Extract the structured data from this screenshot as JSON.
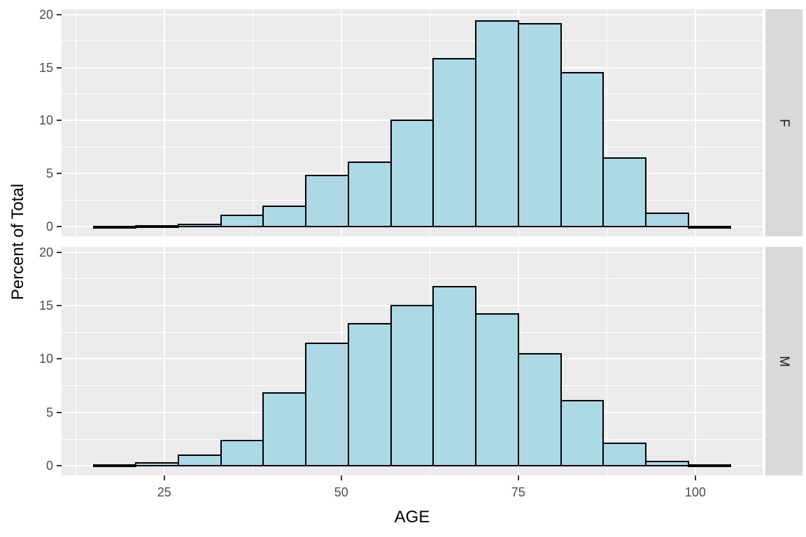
{
  "chart_data": {
    "type": "bar",
    "variant": "faceted-histogram",
    "title": "",
    "xlabel": "AGE",
    "ylabel": "Percent of Total",
    "facet_layout": "rows-right-strips",
    "bin_edges": [
      15,
      21,
      27,
      33,
      39,
      45,
      51,
      57,
      63,
      69,
      75,
      81,
      87,
      93,
      99,
      105
    ],
    "series": [
      {
        "facet": "F",
        "values": [
          0.05,
          0.1,
          0.25,
          1.1,
          1.9,
          4.8,
          6.1,
          10.0,
          15.8,
          19.4,
          19.1,
          14.5,
          6.5,
          1.3,
          0.05
        ]
      },
      {
        "facet": "M",
        "values": [
          0.1,
          0.3,
          1.0,
          2.4,
          6.8,
          11.5,
          13.3,
          15.0,
          16.8,
          14.2,
          10.5,
          6.1,
          2.1,
          0.4,
          0.1
        ]
      }
    ],
    "x_ticks": [
      25,
      50,
      75,
      100
    ],
    "y_ticks": [
      0,
      5,
      10,
      15,
      20
    ],
    "x_minor": [
      12.5,
      37.5,
      62.5,
      87.5
    ],
    "y_minor": [
      2.5,
      7.5,
      12.5,
      17.5
    ],
    "x_domain": [
      10.5,
      109.5
    ],
    "y_domain": [
      -0.9,
      20.5
    ],
    "grid": true,
    "legend": "none"
  },
  "colors": {
    "background": "#FFFFFF",
    "panel_bg": "#EBEBEB",
    "strip_bg": "#D9D9D9",
    "bar_fill": "#ADD8E6",
    "bar_stroke": "#000000",
    "grid_major": "#FFFFFF",
    "grid_minor": "#FFFFFF",
    "tick_mark": "#333333",
    "tick_label": "#4D4D4D",
    "axis_title": "#000000",
    "strip_label": "#1A1A1A"
  }
}
